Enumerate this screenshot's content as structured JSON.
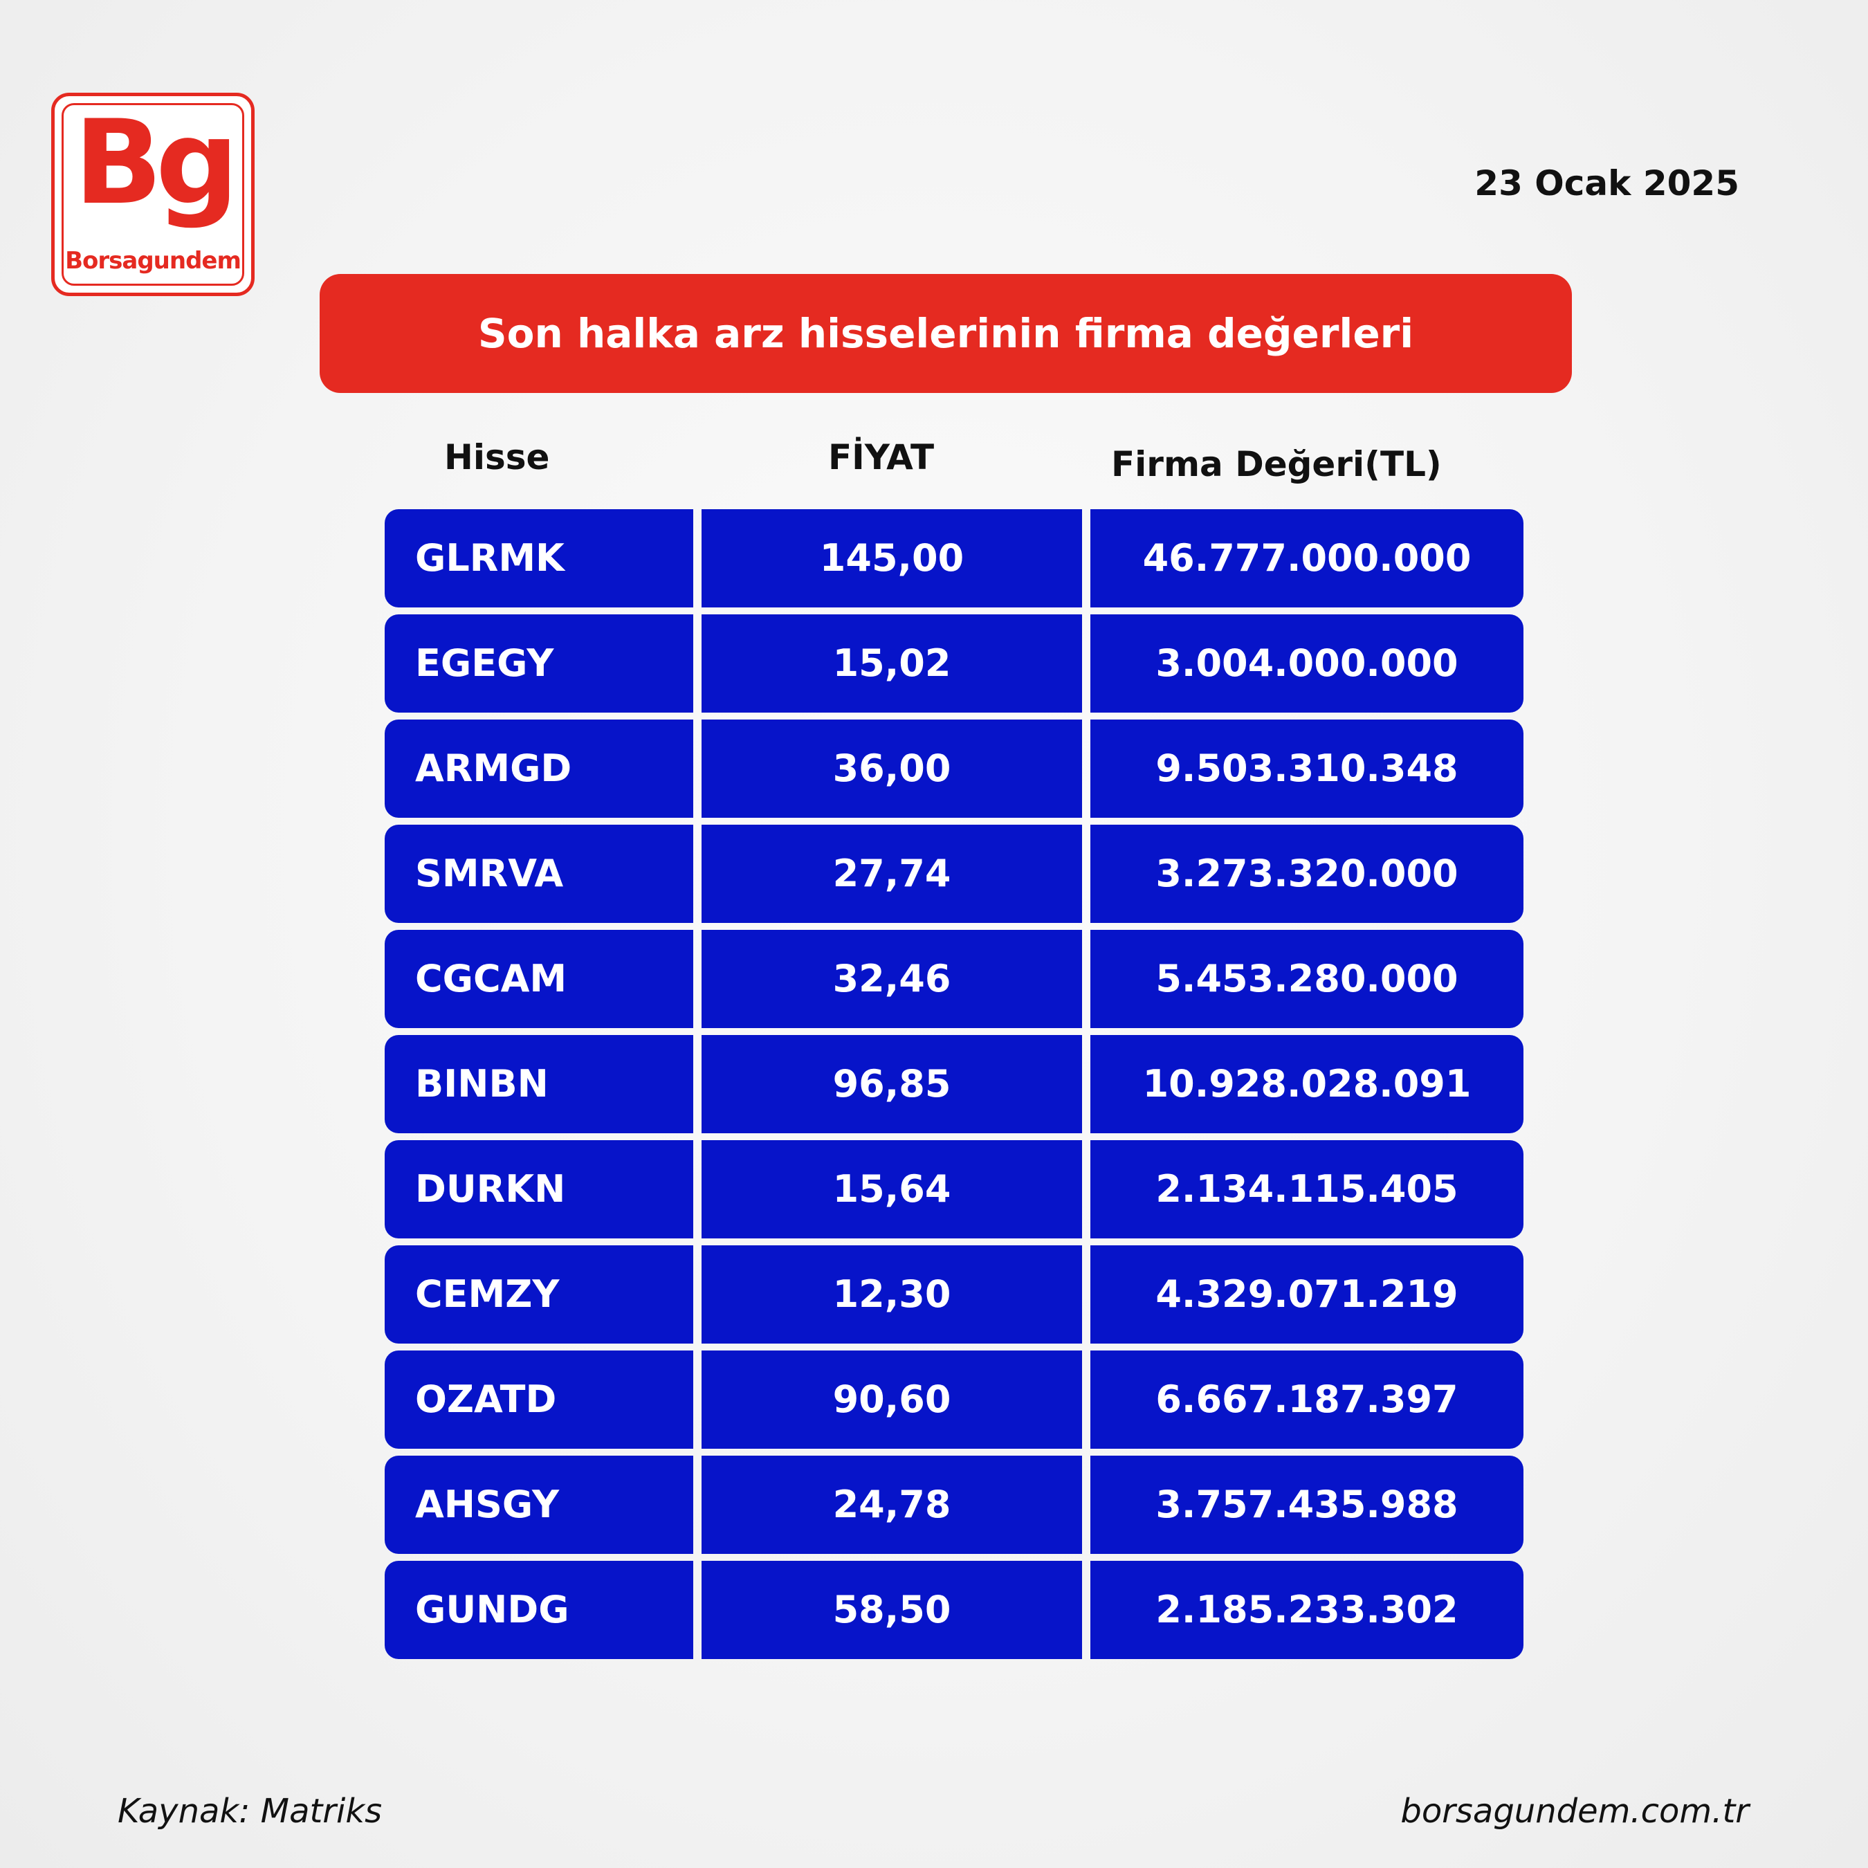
{
  "brand": {
    "mark": "Bg",
    "name": "Borsagundem",
    "color": "#e52a21"
  },
  "date": "23 Ocak 2025",
  "title": "Son halka arz hisselerinin firma değerleri",
  "columns": {
    "stock": "Hisse",
    "price": "FİYAT",
    "value": "Firma Değeri(TL)"
  },
  "rows": [
    {
      "stock": "GLRMK",
      "price": "145,00",
      "value": "46.777.000.000"
    },
    {
      "stock": "EGEGY",
      "price": "15,02",
      "value": "3.004.000.000"
    },
    {
      "stock": "ARMGD",
      "price": "36,00",
      "value": "9.503.310.348"
    },
    {
      "stock": "SMRVA",
      "price": "27,74",
      "value": "3.273.320.000"
    },
    {
      "stock": "CGCAM",
      "price": "32,46",
      "value": "5.453.280.000"
    },
    {
      "stock": "BINBN",
      "price": "96,85",
      "value": "10.928.028.091"
    },
    {
      "stock": "DURKN",
      "price": "15,64",
      "value": "2.134.115.405"
    },
    {
      "stock": "CEMZY",
      "price": "12,30",
      "value": "4.329.071.219"
    },
    {
      "stock": "OZATD",
      "price": "90,60",
      "value": "6.667.187.397"
    },
    {
      "stock": "AHSGY",
      "price": "24,78",
      "value": "3.757.435.988"
    },
    {
      "stock": "GUNDG",
      "price": "58,50",
      "value": "2.185.233.302"
    }
  ],
  "footer": {
    "source": "Kaynak: Matriks",
    "website": "borsagundem.com.tr"
  },
  "colors": {
    "accent": "#e52a21",
    "table_cell": "#0714c9",
    "text_dark": "#111111"
  }
}
